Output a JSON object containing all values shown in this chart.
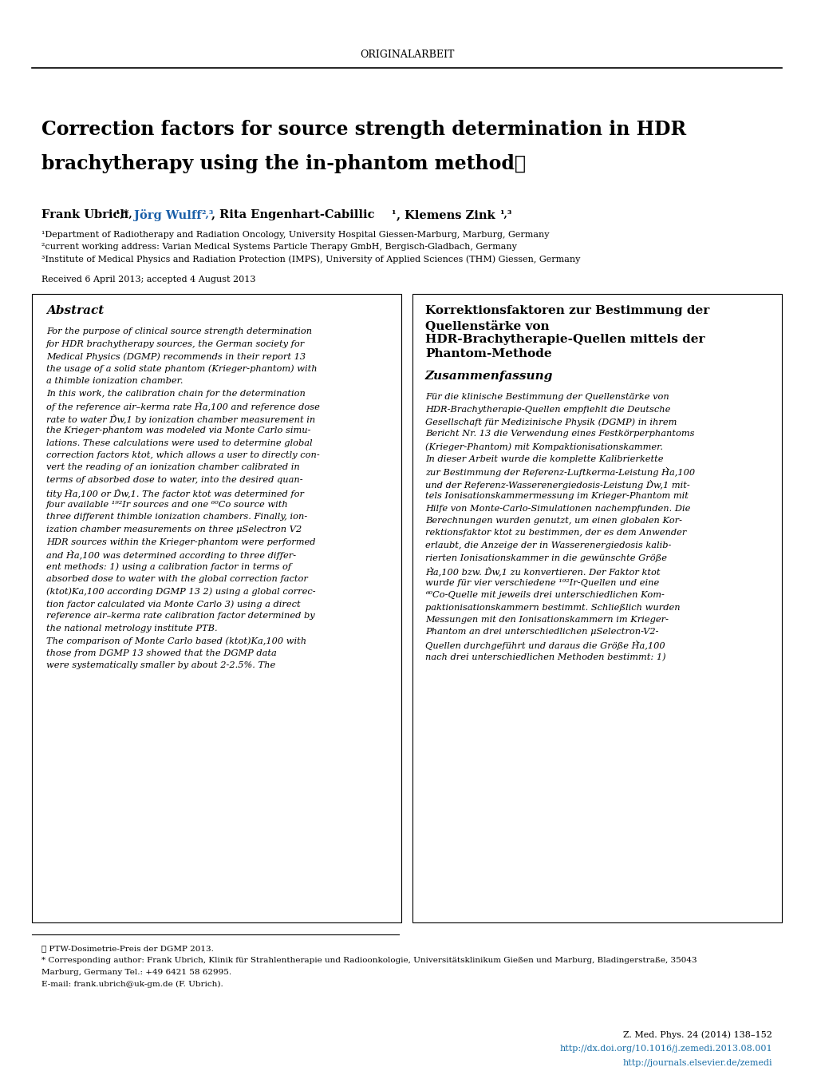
{
  "bg_color": "#ffffff",
  "header_text": "ORIGINALARBEIT",
  "title_line1": "Correction factors for source strength determination in HDR",
  "title_line2": "brachytherapy using the in-phantom method☆",
  "authors_bold": "Frank Ubrich",
  "authors_rest": "¹,*, Jörg Wulff²,³, Rita Engenhart-Cabillic¹, Klemens Zink¹,³",
  "affil1": "¹Department of Radiotherapy and Radiation Oncology, University Hospital Giessen-Marburg, Marburg, Germany",
  "affil2": "²current working address: Varian Medical Systems Particle Therapy GmbH, Bergisch-Gladbach, Germany",
  "affil3": "³Institute of Medical Physics and Radiation Protection (IMPS), University of Applied Sciences (THM) Giessen, Germany",
  "received": "Received 6 April 2013; accepted 4 August 2013",
  "abstract_title": "Abstract",
  "german_title1": "Korrektionsfaktoren zur Bestimmung der",
  "german_title2": "Quellenstärke von",
  "german_title3": "HDR-Brachytherapie-Quellen mittels der",
  "german_title4": "Phantom-Methode",
  "zusammenfassung_title": "Zusammenfassung",
  "footnote1": "☆ PTW-Dosimetrie-Preis der DGMP 2013.",
  "footnote2": "* Corresponding author: Frank Ubrich, Klinik für Strahlentherapie und Radioonkologie, Universitätsklinikum Gießen und Marburg, Bladingerstraße, 35043",
  "footnote3": "Marburg, Germany Tel.: +49 6421 58 62995.",
  "footnote4": "E-mail: frank.ubrich@uk-gm.de (F. Ubrich).",
  "journal_line1": "Z. Med. Phys. 24 (2014) 138–152",
  "journal_line2": "http://dx.doi.org/10.1016/j.zemedi.2013.08.001",
  "journal_line3": "http://journals.elsevier.de/zemedi",
  "abstract_lines": [
    "For the purpose of clinical source strength determination",
    "for HDR brachytherapy sources, the German society for",
    "Medical Physics (DGMP) recommends in their report 13",
    "the usage of a solid state phantom (Krieger-phantom) with",
    "a thimble ionization chamber.",
    "In this work, the calibration chain for the determination",
    "of the reference air–kerma rate Ḣ̇a,100 and reference dose",
    "rate to water Ḋ̇w,1 by ionization chamber measurement in",
    "the Krieger-phantom was modeled via Monte Carlo simu-",
    "lations. These calculations were used to determine global",
    "correction factors ktot, which allows a user to directly con-",
    "vert the reading of an ionization chamber calibrated in",
    "terms of absorbed dose to water, into the desired quan-",
    "tity Ḣ̇a,100 or Ḋ̇w,1. The factor ktot was determined for",
    "four available ¹⁹²Ir sources and one ⁶⁰Co source with",
    "three different thimble ionization chambers. Finally, ion-",
    "ization chamber measurements on three μSelectron V2",
    "HDR sources within the Krieger-phantom were performed",
    "and Ḣ̇a,100 was determined according to three differ-",
    "ent methods: 1) using a calibration factor in terms of",
    "absorbed dose to water with the global correction factor",
    "(ktot)Ka,100 according DGMP 13 2) using a global correc-",
    "tion factor calculated via Monte Carlo 3) using a direct",
    "reference air–kerma rate calibration factor determined by",
    "the national metrology institute PTB.",
    "The comparison of Monte Carlo based (ktot)Ka,100 with",
    "those from DGMP 13 showed that the DGMP data",
    "were systematically smaller by about 2-2.5%. The"
  ],
  "german_lines": [
    "Für die klinische Bestimmung der Quellenstärke von",
    "HDR-Brachytherapie-Quellen empfiehlt die Deutsche",
    "Gesellschaft für Medizinische Physik (DGMP) in ihrem",
    "Bericht Nr. 13 die Verwendung eines Festkörperphantoms",
    "(Krieger-Phantom) mit Kompaktionisationskammer.",
    "In dieser Arbeit wurde die komplette Kalibrierkette",
    "zur Bestimmung der Referenz-Luftkerma-Leistung Ḣ̇a,100",
    "und der Referenz-Wasserenergiedosis-Leistung Ḋ̇w,1 mit-",
    "tels Ionisationskammermessung im Krieger-Phantom mit",
    "Hilfe von Monte-Carlo-Simulationen nachempfunden. Die",
    "Berechnungen wurden genutzt, um einen globalen Kor-",
    "rektionsfaktor ktot zu bestimmen, der es dem Anwender",
    "erlaubt, die Anzeige der in Wasserenergiedosis kalib-",
    "rierten Ionisationskammer in die gewünschte Größe",
    "Ḣ̇a,100 bzw. Ḋ̇w,1 zu konvertieren. Der Faktor ktot",
    "wurde für vier verschiedene ¹⁹²Ir-Quellen und eine",
    "⁶⁰Co-Quelle mit jeweils drei unterschiedlichen Kom-",
    "paktionisationskammern bestimmt. Schließlich wurden",
    "Messungen mit den Ionisationskammern im Krieger-",
    "Phantom an drei unterschiedlichen μSelectron-V2-",
    "Quellen durchgeführt und daraus die Größe Ḣ̇a,100",
    "nach drei unterschiedlichen Methoden bestimmt: 1)"
  ]
}
